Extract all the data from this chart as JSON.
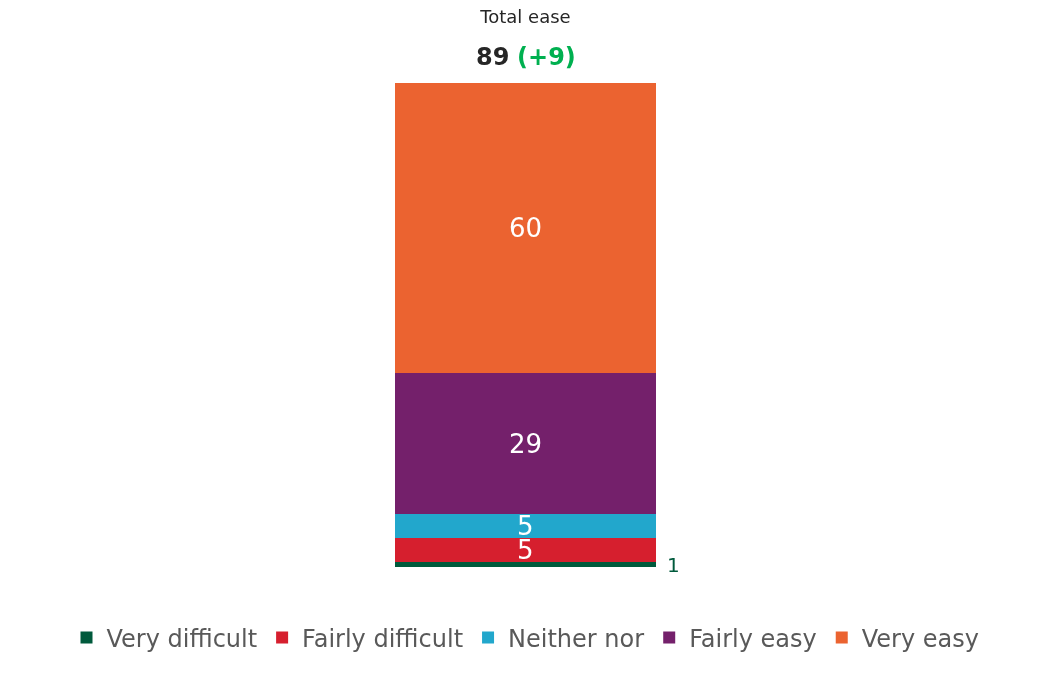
{
  "chart_data": {
    "type": "bar",
    "title": "Total ease",
    "categories": [
      null
    ],
    "stacked": true,
    "ylim": [
      0,
      100
    ],
    "data_labels": true,
    "annotations": [
      "89",
      "(+9)"
    ],
    "legend": "bottom",
    "series": [
      {
        "name": "Very difficult",
        "color": "#005a3c",
        "values": [
          1
        ]
      },
      {
        "name": "Fairly difficult",
        "color": "#d61f2e",
        "values": [
          5
        ]
      },
      {
        "name": "Neither nor",
        "color": "#22a7cc",
        "values": [
          5
        ]
      },
      {
        "name": "Fairly easy",
        "color": "#74206b",
        "values": [
          29
        ]
      },
      {
        "name": "Very easy",
        "color": "#eb6330",
        "values": [
          60
        ]
      }
    ]
  }
}
